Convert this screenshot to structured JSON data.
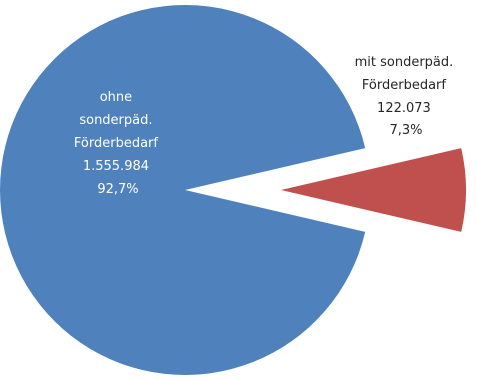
{
  "chart_data": {
    "type": "pie",
    "title": "",
    "start_angle_deg": 90,
    "exploded": [
      "mit sonderpäd. Förderbedarf"
    ],
    "slices": [
      {
        "label_lines": [
          "ohne",
          "sonderpäd.",
          "Förderbedarf"
        ],
        "value_text": "1.555.984",
        "percent_text": "92,7%",
        "value": 1555984,
        "percent": 92.7,
        "color": "#4f81bd",
        "label_color": "#ffffff"
      },
      {
        "label_lines": [
          "mit sonderpäd.",
          "Förderbedarf"
        ],
        "value_text": "122.073",
        "percent_text": "7,3%",
        "value": 122073,
        "percent": 7.3,
        "color": "#c0504d",
        "label_color": "#262626"
      }
    ]
  }
}
